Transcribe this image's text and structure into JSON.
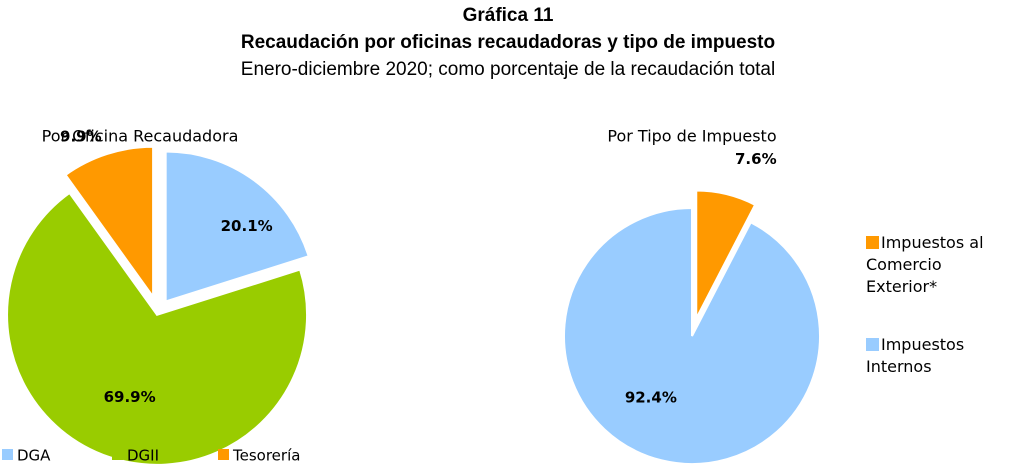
{
  "header": {
    "title": "Gráfica 11",
    "subtitle": "Recaudación por oficinas recaudadoras y tipo de impuesto",
    "note": "Enero-diciembre 2020; como porcentaje de la recaudación total"
  },
  "chart_data": [
    {
      "type": "pie",
      "title": "Por Oficina Recaudadora",
      "categories": [
        "DGA",
        "DGII",
        "Tesorería"
      ],
      "values": [
        20.1,
        69.9,
        9.9
      ],
      "value_labels": [
        "20.1%",
        "69.9%",
        "9.9%"
      ],
      "colors": [
        "#99ccff",
        "#99cc00",
        "#ff9900"
      ],
      "legend": "bottom"
    },
    {
      "type": "pie",
      "title": "Por Tipo de Impuesto",
      "categories": [
        "Impuestos al Comercio Exterior*",
        "Impuestos Internos"
      ],
      "values": [
        7.6,
        92.4
      ],
      "value_labels": [
        "7.6%",
        "92.4%"
      ],
      "colors": [
        "#ff9900",
        "#99ccff"
      ],
      "legend": "right"
    }
  ]
}
